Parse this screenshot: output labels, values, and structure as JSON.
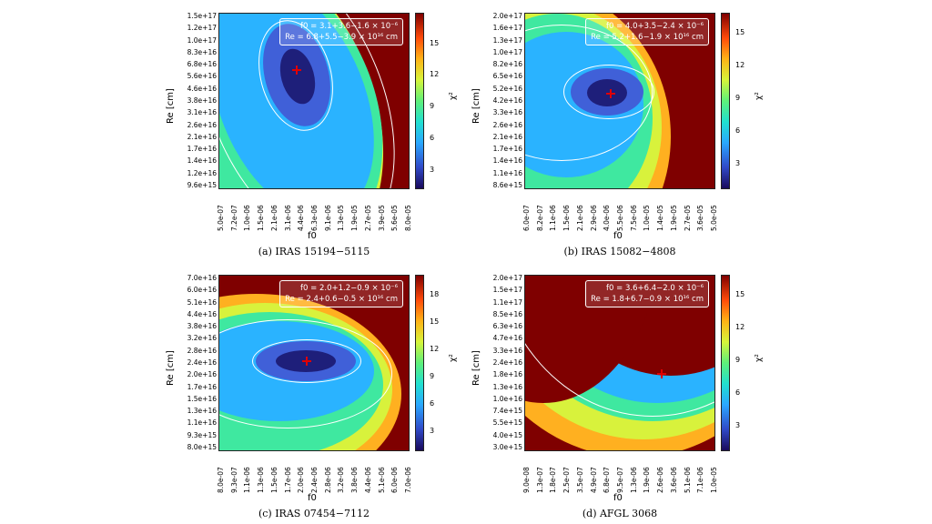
{
  "panels": [
    {
      "caption": "(a) IRAS 15194−5115",
      "xlabel": "f0",
      "ylabel": "Re [cm]",
      "colorbar_label": "χ²",
      "legend_f0": "f0 = 3.1+3.6−1.6 × 10⁻⁶",
      "legend_re": "Re = 6.8+5.5−3.9 × 10¹⁶ cm",
      "yticks": [
        "1.5e+17",
        "1.2e+17",
        "1.0e+17",
        "8.3e+16",
        "6.8e+16",
        "5.6e+16",
        "4.6e+16",
        "3.8e+16",
        "3.1e+16",
        "2.6e+16",
        "2.1e+16",
        "1.7e+16",
        "1.4e+16",
        "1.2e+16",
        "9.6e+15"
      ],
      "xticks": [
        "5.0e-07",
        "7.2e-07",
        "1.0e-06",
        "1.5e-06",
        "2.1e-06",
        "3.1e-06",
        "4.4e-06",
        "6.3e-06",
        "9.1e-06",
        "1.3e-05",
        "1.9e-05",
        "2.7e-05",
        "3.9e-05",
        "5.6e-05",
        "8.0e-05"
      ],
      "cticks": [
        "15",
        "12",
        "9",
        "6",
        "3"
      ]
    },
    {
      "caption": "(b) IRAS 15082−4808",
      "xlabel": "f0",
      "ylabel": "Re [cm]",
      "colorbar_label": "χ²",
      "legend_f0": "f0 = 4.0+3.5−2.4 × 10⁻⁶",
      "legend_re": "Re = 5.2+1.6−1.9 × 10¹⁶ cm",
      "yticks": [
        "2.0e+17",
        "1.6e+17",
        "1.3e+17",
        "1.0e+17",
        "8.2e+16",
        "6.5e+16",
        "5.2e+16",
        "4.2e+16",
        "3.3e+16",
        "2.6e+16",
        "2.1e+16",
        "1.7e+16",
        "1.4e+16",
        "1.1e+16",
        "8.6e+15"
      ],
      "xticks": [
        "6.0e-07",
        "8.2e-07",
        "1.1e-06",
        "1.5e-06",
        "2.1e-06",
        "2.9e-06",
        "4.0e-06",
        "5.5e-06",
        "7.5e-06",
        "1.0e-05",
        "1.4e-05",
        "1.9e-05",
        "2.7e-05",
        "3.6e-05",
        "5.0e-05"
      ],
      "cticks": [
        "15",
        "12",
        "9",
        "6",
        "3"
      ]
    },
    {
      "caption": "(c) IRAS 07454−7112",
      "xlabel": "f0",
      "ylabel": "Re [cm]",
      "colorbar_label": "χ²",
      "legend_f0": "f0 = 2.0+1.2−0.9 × 10⁻⁶",
      "legend_re": "Re = 2.4+0.6−0.5 × 10¹⁶ cm",
      "yticks": [
        "7.0e+16",
        "6.0e+16",
        "5.1e+16",
        "4.4e+16",
        "3.8e+16",
        "3.2e+16",
        "2.8e+16",
        "2.4e+16",
        "2.0e+16",
        "1.7e+16",
        "1.5e+16",
        "1.3e+16",
        "1.1e+16",
        "9.3e+15",
        "8.0e+15"
      ],
      "xticks": [
        "8.0e-07",
        "9.3e-07",
        "1.1e-06",
        "1.3e-06",
        "1.5e-06",
        "1.7e-06",
        "2.0e-06",
        "2.4e-06",
        "2.8e-06",
        "3.2e-06",
        "3.8e-06",
        "4.4e-06",
        "5.1e-06",
        "6.0e-06",
        "7.0e-06"
      ],
      "cticks": [
        "18",
        "15",
        "12",
        "9",
        "6",
        "3"
      ]
    },
    {
      "caption": "(d) AFGL 3068",
      "xlabel": "f0",
      "ylabel": "Re [cm]",
      "colorbar_label": "χ²",
      "legend_f0": "f0 = 3.6+6.4−2.0 × 10⁻⁶",
      "legend_re": "Re = 1.8+6.7−0.9 × 10¹⁶ cm",
      "yticks": [
        "2.0e+17",
        "1.5e+17",
        "1.1e+17",
        "8.5e+16",
        "6.3e+16",
        "4.7e+16",
        "3.3e+16",
        "2.4e+16",
        "1.8e+16",
        "1.3e+16",
        "1.0e+16",
        "7.4e+15",
        "5.5e+15",
        "4.0e+15",
        "3.0e+15"
      ],
      "xticks": [
        "9.0e-08",
        "1.3e-07",
        "1.8e-07",
        "2.5e-07",
        "3.5e-07",
        "4.9e-07",
        "6.8e-07",
        "9.5e-07",
        "1.3e-06",
        "1.9e-06",
        "2.6e-06",
        "3.6e-06",
        "5.1e-06",
        "7.1e-06",
        "1.0e-05"
      ],
      "cticks": [
        "15",
        "12",
        "9",
        "6",
        "3"
      ]
    }
  ],
  "chart_data": [
    {
      "type": "heatmap",
      "title": "(a) IRAS 15194−5115",
      "xlabel": "f0",
      "ylabel": "Re [cm]",
      "colorbar": "χ²",
      "clim": [
        0,
        17
      ],
      "best_fit": {
        "f0": 3.1e-06,
        "Re": 6.8e+16
      }
    },
    {
      "type": "heatmap",
      "title": "(b) IRAS 15082−4808",
      "xlabel": "f0",
      "ylabel": "Re [cm]",
      "colorbar": "χ²",
      "clim": [
        0,
        17
      ],
      "best_fit": {
        "f0": 4e-06,
        "Re": 5.2e+16
      }
    },
    {
      "type": "heatmap",
      "title": "(c) IRAS 07454−7112",
      "xlabel": "f0",
      "ylabel": "Re [cm]",
      "colorbar": "χ²",
      "clim": [
        0,
        20
      ],
      "best_fit": {
        "f0": 2e-06,
        "Re": 2.4e+16
      }
    },
    {
      "type": "heatmap",
      "title": "(d) AFGL 3068",
      "xlabel": "f0",
      "ylabel": "Re [cm]",
      "colorbar": "χ²",
      "clim": [
        0,
        17
      ],
      "best_fit": {
        "f0": 3.6e-06,
        "Re": 1.8e+16
      }
    }
  ]
}
